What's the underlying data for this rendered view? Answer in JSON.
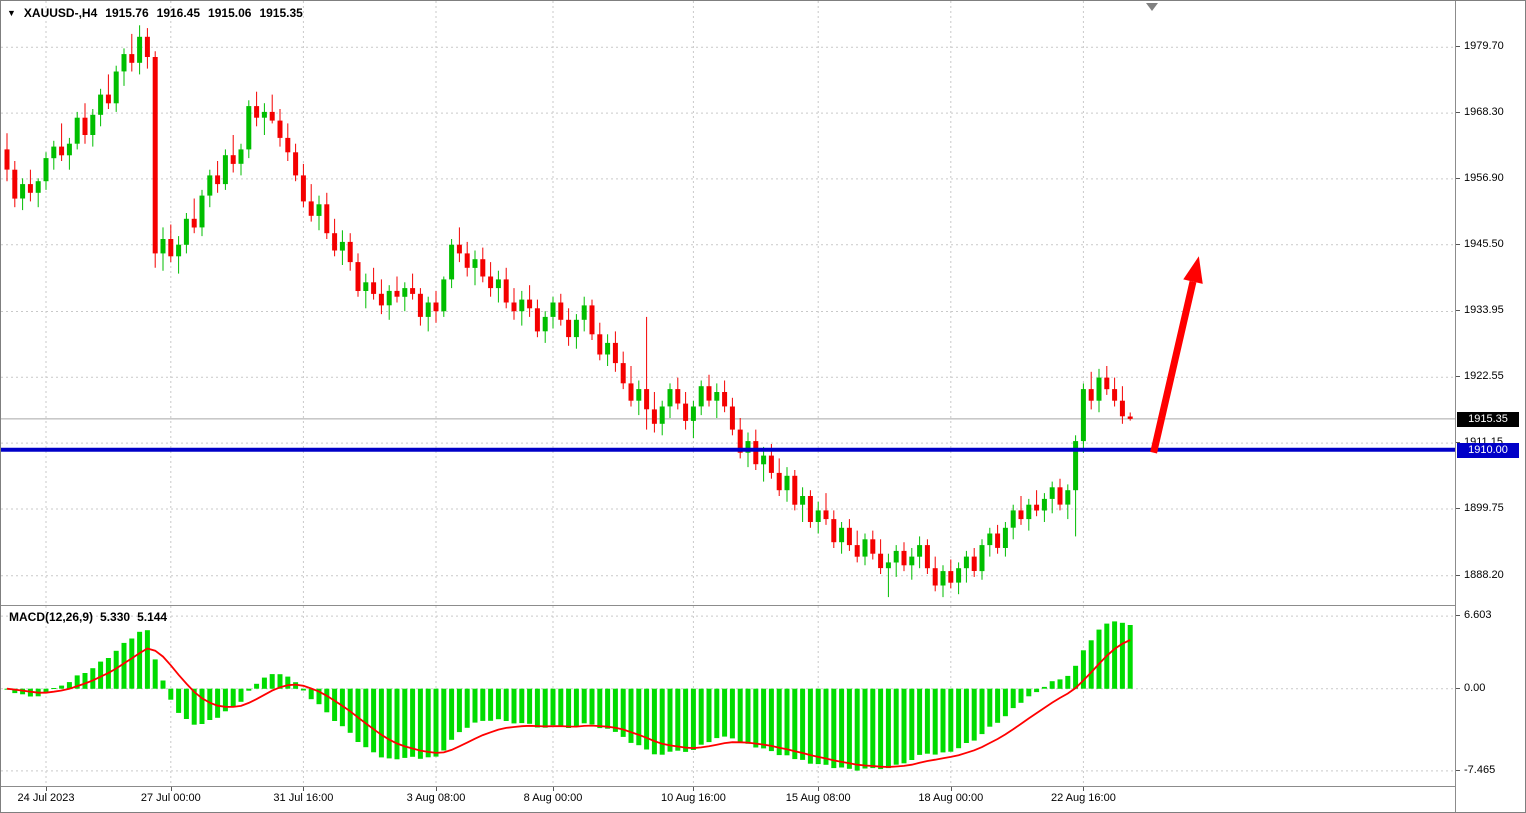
{
  "header": {
    "symbol_period": "XAUUSD-,H4",
    "open": "1915.76",
    "high": "1916.45",
    "low": "1915.06",
    "close": "1915.35"
  },
  "indicator": {
    "label": "MACD(12,26,9)",
    "main": "5.330",
    "signal": "5.144"
  },
  "icons": {
    "symbol_dropdown": "▼"
  },
  "colors": {
    "up": "#00BE00",
    "down": "#F40000",
    "macd_bar": "#00DC00",
    "signal": "#FF0000",
    "hline": "#0000C8",
    "grid": "#C9C9C9",
    "current_line": "#A6A6A6",
    "arrow": "#FF0000",
    "tag_current_bg": "#000000",
    "tag_hline_bg": "#0000C8"
  },
  "chart_data": {
    "type": "candlestick",
    "title": "XAUUSD-,H4",
    "symbol": "XAUUSD-",
    "timeframe": "H4",
    "grid": true,
    "legend": false,
    "ohlc_display": {
      "open": 1915.76,
      "high": 1916.45,
      "low": 1915.06,
      "close": 1915.35
    },
    "price_axis": {
      "labels": [
        "1979.70",
        "1968.30",
        "1956.90",
        "1945.50",
        "1933.95",
        "1922.55",
        "1911.15",
        "1899.75",
        "1888.20"
      ],
      "values": [
        1979.7,
        1968.3,
        1956.9,
        1945.5,
        1933.95,
        1922.55,
        1911.15,
        1899.75,
        1888.2
      ],
      "ylim": [
        1883.3,
        1987.7
      ]
    },
    "time_axis": {
      "labels": [
        "24 Jul 2023",
        "27 Jul 00:00",
        "31 Jul 16:00",
        "3 Aug 08:00",
        "8 Aug 00:00",
        "10 Aug 16:00",
        "15 Aug 08:00",
        "18 Aug 00:00",
        "22 Aug 16:00"
      ],
      "bar_indices": [
        5,
        21,
        38,
        55,
        70,
        88,
        104,
        121,
        138
      ]
    },
    "current_price": {
      "value": 1915.35,
      "label": "1915.35"
    },
    "horizontal_line": {
      "value": 1910.0,
      "label": "1910.00"
    },
    "indicator": {
      "type": "MACD",
      "params": [
        12,
        26,
        9
      ],
      "label": "MACD(12,26,9)",
      "main_value": 5.33,
      "signal_value": 5.144,
      "axis": {
        "labels": [
          "6.603",
          "0.00",
          "-7.465"
        ],
        "values": [
          6.603,
          0,
          -7.465
        ],
        "ylim": [
          -8.84,
          7.52
        ]
      }
    },
    "annotations": [
      {
        "type": "arrow",
        "color": "#FF0000",
        "from": {
          "bar_index": 147,
          "price": 1909.5
        },
        "to": {
          "bar_index": 152.8,
          "price": 1943.5
        }
      }
    ],
    "candles": [
      [
        1962.0,
        1964.8,
        1956.5,
        1958.5
      ],
      [
        1958.5,
        1960.0,
        1952.0,
        1953.5
      ],
      [
        1953.5,
        1957.0,
        1951.5,
        1956.0
      ],
      [
        1956.0,
        1958.5,
        1953.0,
        1954.5
      ],
      [
        1954.5,
        1957.0,
        1952.0,
        1956.5
      ],
      [
        1956.5,
        1961.5,
        1955.0,
        1960.5
      ],
      [
        1960.5,
        1963.5,
        1958.5,
        1962.5
      ],
      [
        1962.5,
        1966.5,
        1960.0,
        1961.0
      ],
      [
        1961.0,
        1964.0,
        1958.5,
        1963.0
      ],
      [
        1963.0,
        1968.5,
        1962.0,
        1967.5
      ],
      [
        1967.5,
        1970.0,
        1963.0,
        1964.5
      ],
      [
        1964.5,
        1969.0,
        1962.5,
        1968.0
      ],
      [
        1968.0,
        1972.5,
        1966.0,
        1971.5
      ],
      [
        1971.5,
        1975.0,
        1969.0,
        1970.0
      ],
      [
        1970.0,
        1976.5,
        1968.5,
        1975.5
      ],
      [
        1975.5,
        1979.5,
        1973.0,
        1978.5
      ],
      [
        1978.5,
        1982.0,
        1975.5,
        1977.0
      ],
      [
        1977.0,
        1983.5,
        1975.0,
        1981.5
      ],
      [
        1981.5,
        1983.0,
        1976.0,
        1978.0
      ],
      [
        1978.0,
        1979.0,
        1941.5,
        1944.0
      ],
      [
        1944.0,
        1948.5,
        1941.0,
        1946.5
      ],
      [
        1946.5,
        1949.0,
        1942.5,
        1943.5
      ],
      [
        1943.5,
        1947.0,
        1940.5,
        1945.5
      ],
      [
        1945.5,
        1951.0,
        1944.0,
        1950.0
      ],
      [
        1950.0,
        1953.5,
        1947.5,
        1948.5
      ],
      [
        1948.5,
        1955.0,
        1947.0,
        1954.0
      ],
      [
        1954.0,
        1958.5,
        1952.0,
        1957.5
      ],
      [
        1957.5,
        1960.0,
        1954.5,
        1956.0
      ],
      [
        1956.0,
        1962.0,
        1955.0,
        1961.0
      ],
      [
        1961.0,
        1964.5,
        1958.0,
        1959.5
      ],
      [
        1959.5,
        1963.0,
        1957.5,
        1962.0
      ],
      [
        1962.0,
        1970.5,
        1960.5,
        1969.5
      ],
      [
        1969.5,
        1972.0,
        1966.0,
        1967.5
      ],
      [
        1967.5,
        1970.0,
        1964.5,
        1968.5
      ],
      [
        1968.5,
        1971.5,
        1966.5,
        1967.0
      ],
      [
        1967.0,
        1969.0,
        1962.5,
        1964.0
      ],
      [
        1964.0,
        1966.5,
        1960.0,
        1961.5
      ],
      [
        1961.5,
        1963.0,
        1956.5,
        1957.5
      ],
      [
        1957.5,
        1959.5,
        1952.0,
        1953.0
      ],
      [
        1953.0,
        1956.0,
        1949.5,
        1950.5
      ],
      [
        1950.5,
        1954.0,
        1948.0,
        1952.5
      ],
      [
        1952.5,
        1954.5,
        1946.5,
        1947.5
      ],
      [
        1947.5,
        1950.0,
        1943.5,
        1944.5
      ],
      [
        1944.5,
        1948.0,
        1942.0,
        1946.0
      ],
      [
        1946.0,
        1947.5,
        1941.0,
        1942.5
      ],
      [
        1942.5,
        1944.0,
        1936.5,
        1937.5
      ],
      [
        1937.5,
        1940.5,
        1934.5,
        1939.0
      ],
      [
        1939.0,
        1941.5,
        1936.0,
        1937.0
      ],
      [
        1937.0,
        1939.5,
        1933.5,
        1935.0
      ],
      [
        1935.0,
        1938.5,
        1932.5,
        1937.5
      ],
      [
        1937.5,
        1940.0,
        1935.5,
        1936.5
      ],
      [
        1936.5,
        1939.0,
        1934.0,
        1938.0
      ],
      [
        1938.0,
        1940.5,
        1936.0,
        1937.0
      ],
      [
        1937.0,
        1938.0,
        1931.5,
        1933.0
      ],
      [
        1933.0,
        1936.5,
        1930.5,
        1935.5
      ],
      [
        1935.5,
        1937.5,
        1932.0,
        1934.0
      ],
      [
        1934.0,
        1940.0,
        1933.0,
        1939.5
      ],
      [
        1939.5,
        1946.5,
        1938.0,
        1945.5
      ],
      [
        1945.5,
        1948.5,
        1942.5,
        1944.0
      ],
      [
        1944.0,
        1946.0,
        1940.0,
        1941.5
      ],
      [
        1941.5,
        1944.5,
        1938.5,
        1943.0
      ],
      [
        1943.0,
        1945.0,
        1939.0,
        1940.0
      ],
      [
        1940.0,
        1942.5,
        1936.5,
        1938.0
      ],
      [
        1938.0,
        1941.0,
        1935.5,
        1939.5
      ],
      [
        1939.5,
        1941.5,
        1934.5,
        1935.5
      ],
      [
        1935.5,
        1938.0,
        1932.5,
        1934.0
      ],
      [
        1934.0,
        1937.5,
        1931.5,
        1936.0
      ],
      [
        1936.0,
        1938.5,
        1933.0,
        1934.5
      ],
      [
        1934.5,
        1936.0,
        1929.5,
        1930.5
      ],
      [
        1930.5,
        1934.0,
        1928.5,
        1933.0
      ],
      [
        1933.0,
        1936.5,
        1931.0,
        1935.5
      ],
      [
        1935.5,
        1937.0,
        1931.5,
        1932.5
      ],
      [
        1932.5,
        1934.5,
        1928.0,
        1929.5
      ],
      [
        1929.5,
        1933.5,
        1927.5,
        1932.5
      ],
      [
        1932.5,
        1936.5,
        1930.5,
        1935.0
      ],
      [
        1935.0,
        1936.0,
        1929.0,
        1930.0
      ],
      [
        1930.0,
        1932.0,
        1925.5,
        1926.5
      ],
      [
        1926.5,
        1930.0,
        1924.5,
        1928.5
      ],
      [
        1928.5,
        1930.5,
        1923.5,
        1925.0
      ],
      [
        1925.0,
        1927.0,
        1920.5,
        1921.5
      ],
      [
        1921.5,
        1924.5,
        1917.5,
        1918.5
      ],
      [
        1918.5,
        1922.0,
        1916.0,
        1920.5
      ],
      [
        1920.5,
        1933.0,
        1913.5,
        1917.0
      ],
      [
        1917.0,
        1920.0,
        1913.0,
        1914.5
      ],
      [
        1914.5,
        1918.5,
        1912.5,
        1917.5
      ],
      [
        1917.5,
        1921.5,
        1915.5,
        1920.5
      ],
      [
        1920.5,
        1922.5,
        1917.0,
        1918.0
      ],
      [
        1918.0,
        1920.0,
        1913.5,
        1915.0
      ],
      [
        1915.0,
        1918.5,
        1912.0,
        1917.5
      ],
      [
        1917.5,
        1922.0,
        1916.0,
        1921.0
      ],
      [
        1921.0,
        1923.0,
        1917.5,
        1918.5
      ],
      [
        1918.5,
        1921.5,
        1915.5,
        1920.0
      ],
      [
        1920.0,
        1922.0,
        1916.5,
        1917.5
      ],
      [
        1917.5,
        1919.0,
        1912.5,
        1913.5
      ],
      [
        1913.5,
        1915.5,
        1908.5,
        1909.5
      ],
      [
        1909.5,
        1913.0,
        1907.0,
        1911.5
      ],
      [
        1911.5,
        1913.5,
        1906.5,
        1907.5
      ],
      [
        1907.5,
        1910.5,
        1904.5,
        1909.0
      ],
      [
        1909.0,
        1911.0,
        1905.0,
        1906.0
      ],
      [
        1906.0,
        1908.5,
        1902.0,
        1903.0
      ],
      [
        1903.0,
        1907.0,
        1901.0,
        1905.5
      ],
      [
        1905.5,
        1906.5,
        1899.5,
        1900.5
      ],
      [
        1900.5,
        1903.5,
        1897.5,
        1902.0
      ],
      [
        1902.0,
        1903.0,
        1896.5,
        1897.5
      ],
      [
        1897.5,
        1901.0,
        1895.5,
        1899.5
      ],
      [
        1899.5,
        1902.5,
        1897.0,
        1898.0
      ],
      [
        1898.0,
        1899.5,
        1893.0,
        1894.0
      ],
      [
        1894.0,
        1897.5,
        1892.0,
        1896.5
      ],
      [
        1896.5,
        1898.0,
        1892.5,
        1893.5
      ],
      [
        1893.5,
        1896.0,
        1890.5,
        1891.5
      ],
      [
        1891.5,
        1895.5,
        1890.0,
        1894.5
      ],
      [
        1894.5,
        1896.0,
        1891.0,
        1892.0
      ],
      [
        1892.0,
        1894.5,
        1888.5,
        1889.5
      ],
      [
        1889.5,
        1892.0,
        1884.5,
        1890.5
      ],
      [
        1890.5,
        1893.5,
        1888.0,
        1892.5
      ],
      [
        1892.5,
        1894.0,
        1889.0,
        1890.0
      ],
      [
        1890.0,
        1893.0,
        1887.5,
        1891.5
      ],
      [
        1891.5,
        1895.0,
        1889.5,
        1893.5
      ],
      [
        1893.5,
        1894.5,
        1888.5,
        1889.5
      ],
      [
        1889.5,
        1891.5,
        1885.5,
        1886.5
      ],
      [
        1886.5,
        1890.0,
        1884.5,
        1889.0
      ],
      [
        1889.0,
        1891.0,
        1886.0,
        1887.0
      ],
      [
        1887.0,
        1890.5,
        1885.0,
        1889.5
      ],
      [
        1889.5,
        1892.5,
        1887.0,
        1891.5
      ],
      [
        1891.5,
        1893.0,
        1888.0,
        1889.0
      ],
      [
        1889.0,
        1894.5,
        1887.5,
        1893.5
      ],
      [
        1893.5,
        1896.5,
        1891.5,
        1895.5
      ],
      [
        1895.5,
        1897.0,
        1892.0,
        1893.0
      ],
      [
        1893.0,
        1897.5,
        1891.5,
        1896.5
      ],
      [
        1896.5,
        1900.5,
        1894.5,
        1899.5
      ],
      [
        1899.5,
        1902.0,
        1897.0,
        1898.0
      ],
      [
        1898.0,
        1901.5,
        1896.0,
        1900.5
      ],
      [
        1900.5,
        1903.0,
        1898.5,
        1899.5
      ],
      [
        1899.5,
        1902.5,
        1897.5,
        1901.5
      ],
      [
        1901.5,
        1904.5,
        1899.0,
        1903.5
      ],
      [
        1903.5,
        1905.0,
        1899.5,
        1900.5
      ],
      [
        1900.5,
        1904.0,
        1898.0,
        1903.0
      ],
      [
        1903.0,
        1912.5,
        1895.0,
        1911.5
      ],
      [
        1911.5,
        1921.5,
        1909.5,
        1920.5
      ],
      [
        1920.5,
        1923.5,
        1917.0,
        1918.5
      ],
      [
        1918.5,
        1924.0,
        1916.5,
        1922.5
      ],
      [
        1922.5,
        1924.5,
        1919.5,
        1920.5
      ],
      [
        1920.5,
        1922.5,
        1917.5,
        1918.5
      ],
      [
        1918.5,
        1921.0,
        1914.5,
        1915.8
      ],
      [
        1915.76,
        1916.45,
        1915.06,
        1915.35
      ]
    ]
  }
}
